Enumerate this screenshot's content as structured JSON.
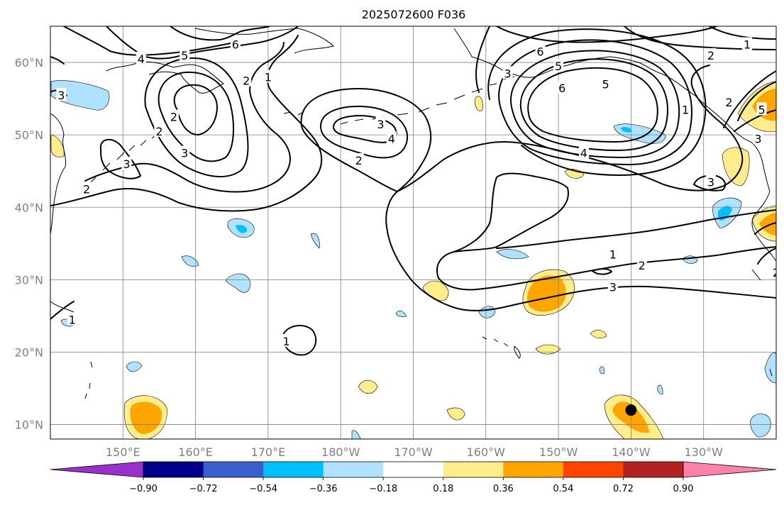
{
  "title": "2025072600 F036",
  "map": {
    "projection": "PlateCarree",
    "lon_range": [
      140,
      240
    ],
    "lat_range": [
      8,
      65
    ],
    "lat_ticks": [
      10,
      20,
      30,
      40,
      50,
      60
    ],
    "lon_ticks": [
      150,
      160,
      170,
      180,
      190,
      200,
      210,
      220,
      230
    ],
    "lat_labels": [
      "10°N",
      "20°N",
      "30°N",
      "40°N",
      "50°N",
      "60°N"
    ],
    "lon_labels": [
      "150°E",
      "160°E",
      "170°E",
      "180°W",
      "170°W",
      "160°W",
      "150°W",
      "140°W",
      "130°W"
    ],
    "grid": true,
    "contour_color": "#000000",
    "contour_labels": [
      {
        "text": "4",
        "lon": 152.5,
        "lat": 60.5
      },
      {
        "text": "5",
        "lon": 158.5,
        "lat": 61.0
      },
      {
        "text": "6",
        "lon": 165.5,
        "lat": 62.5
      },
      {
        "text": "2",
        "lon": 167.0,
        "lat": 57.5
      },
      {
        "text": "1",
        "lon": 170.0,
        "lat": 58.0
      },
      {
        "text": "2",
        "lon": 157.0,
        "lat": 52.5
      },
      {
        "text": "3",
        "lon": 158.5,
        "lat": 47.5
      },
      {
        "text": "2",
        "lon": 155.0,
        "lat": 50.5
      },
      {
        "text": "3",
        "lon": 150.5,
        "lat": 46.0
      },
      {
        "text": "2",
        "lon": 145.0,
        "lat": 42.5
      },
      {
        "text": "3",
        "lon": 141.5,
        "lat": 55.5
      },
      {
        "text": "3",
        "lon": 185.5,
        "lat": 51.5
      },
      {
        "text": "4",
        "lon": 187.0,
        "lat": 49.5
      },
      {
        "text": "2",
        "lon": 182.5,
        "lat": 46.5
      },
      {
        "text": "6",
        "lon": 207.5,
        "lat": 61.5
      },
      {
        "text": "5",
        "lon": 210.0,
        "lat": 59.5
      },
      {
        "text": "3",
        "lon": 203.0,
        "lat": 58.5
      },
      {
        "text": "6",
        "lon": 210.5,
        "lat": 56.5
      },
      {
        "text": "5",
        "lon": 216.5,
        "lat": 57.0
      },
      {
        "text": "4",
        "lon": 213.5,
        "lat": 47.5
      },
      {
        "text": "1",
        "lon": 227.5,
        "lat": 53.5
      },
      {
        "text": "2",
        "lon": 233.5,
        "lat": 54.5
      },
      {
        "text": "3",
        "lon": 237.5,
        "lat": 49.5
      },
      {
        "text": "5",
        "lon": 238.0,
        "lat": 53.5
      },
      {
        "text": "1",
        "lon": 236.0,
        "lat": 62.5
      },
      {
        "text": "2",
        "lon": 231.0,
        "lat": 61.0
      },
      {
        "text": "3",
        "lon": 231.0,
        "lat": 43.5
      },
      {
        "text": "1",
        "lon": 217.5,
        "lat": 33.5
      },
      {
        "text": "2",
        "lon": 221.5,
        "lat": 32.0
      },
      {
        "text": "3",
        "lon": 217.5,
        "lat": 29.0
      },
      {
        "text": "1",
        "lon": 172.5,
        "lat": 21.5
      },
      {
        "text": "2",
        "lon": 240.0,
        "lat": 31.0
      },
      {
        "text": "1",
        "lon": 143.0,
        "lat": 24.5
      }
    ],
    "marker": {
      "lon": 220.0,
      "lat": 12.0,
      "color": "#000000"
    }
  },
  "colorbar": {
    "levels": [
      -0.9,
      -0.72,
      -0.54,
      -0.36,
      -0.18,
      0.18,
      0.36,
      0.54,
      0.72,
      0.9
    ],
    "tick_labels": [
      "−0.90",
      "−0.72",
      "−0.54",
      "−0.36",
      "−0.18",
      "0.18",
      "0.36",
      "0.54",
      "0.72",
      "0.90"
    ],
    "colors": [
      "#9932cc",
      "#00008b",
      "#3a5fcd",
      "#00bfff",
      "#b0e2ff",
      "#ffffff",
      "#ffec8b",
      "#ffa500",
      "#ff4500",
      "#b22222",
      "#ff82ab"
    ],
    "extend": "both"
  }
}
